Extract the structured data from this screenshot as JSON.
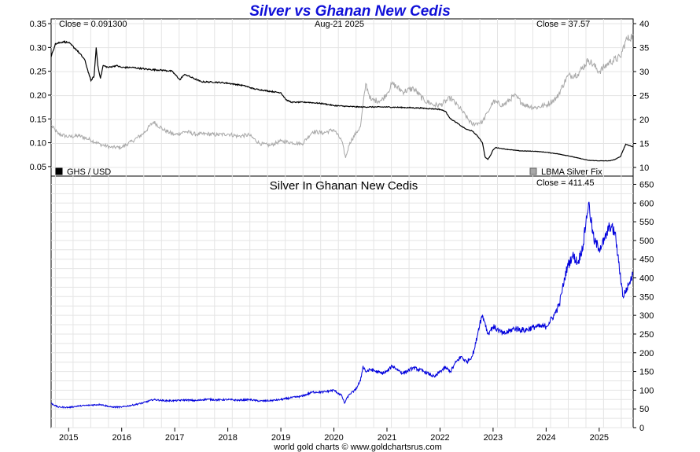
{
  "title": "Silver vs Ghanan New Cedis",
  "footer": "world gold charts © www.goldchartsrus.com",
  "colors": {
    "ghs_usd": "#000000",
    "lbma": "#a8a8a8",
    "silver_ghs": "#0000dd",
    "grid": "#e4e4e4",
    "title": "#1010d8"
  },
  "chart_data": [
    {
      "type": "line",
      "panel": "top",
      "date_label": "Aug-21  2025",
      "close_left": "Close = 0.091300",
      "close_right": "Close = 37.57",
      "legend": [
        {
          "label": "GHS / USD",
          "color": "#000000",
          "position": "bottom-left"
        },
        {
          "label": "LBMA Silver Fix",
          "color": "#a8a8a8",
          "position": "bottom-right"
        }
      ],
      "y_left": {
        "ylim": [
          0.03,
          0.36
        ],
        "ticks": [
          0.05,
          0.1,
          0.15,
          0.2,
          0.25,
          0.3,
          0.35
        ],
        "tick_labels": [
          "0.05",
          "0.10",
          "0.15",
          "0.20",
          "0.25",
          "0.30",
          "0.35"
        ]
      },
      "y_right": {
        "ylim": [
          8.2,
          41
        ],
        "ticks": [
          10,
          15,
          20,
          25,
          30,
          35,
          40
        ],
        "tick_labels": [
          "10",
          "15",
          "20",
          "25",
          "30",
          "35",
          "40"
        ]
      },
      "xlim": [
        2014.67,
        2025.64
      ],
      "grid": true,
      "series": [
        {
          "name": "GHS / USD",
          "axis": "left",
          "color": "#000000",
          "x": [
            2014.67,
            2014.75,
            2014.9,
            2015.0,
            2015.15,
            2015.3,
            2015.42,
            2015.48,
            2015.52,
            2015.55,
            2015.6,
            2015.65,
            2015.75,
            2015.9,
            2016.0,
            2016.2,
            2016.5,
            2016.8,
            2016.95,
            2017.1,
            2017.15,
            2017.2,
            2017.5,
            2017.8,
            2018.0,
            2018.3,
            2018.5,
            2018.8,
            2019.0,
            2019.1,
            2019.2,
            2019.5,
            2019.8,
            2020.0,
            2020.3,
            2020.5,
            2020.8,
            2021.0,
            2021.3,
            2021.6,
            2021.9,
            2022.0,
            2022.1,
            2022.15,
            2022.2,
            2022.3,
            2022.4,
            2022.5,
            2022.6,
            2022.7,
            2022.8,
            2022.85,
            2022.9,
            2022.95,
            2023.0,
            2023.05,
            2023.2,
            2023.5,
            2023.8,
            2024.0,
            2024.2,
            2024.4,
            2024.6,
            2024.8,
            2025.0,
            2025.2,
            2025.3,
            2025.4,
            2025.5,
            2025.64
          ],
          "y": [
            0.28,
            0.308,
            0.312,
            0.31,
            0.295,
            0.275,
            0.23,
            0.24,
            0.3,
            0.262,
            0.235,
            0.262,
            0.258,
            0.262,
            0.258,
            0.258,
            0.254,
            0.252,
            0.25,
            0.232,
            0.24,
            0.243,
            0.228,
            0.227,
            0.225,
            0.22,
            0.213,
            0.208,
            0.205,
            0.19,
            0.185,
            0.185,
            0.182,
            0.178,
            0.176,
            0.175,
            0.175,
            0.175,
            0.174,
            0.173,
            0.171,
            0.17,
            0.166,
            0.158,
            0.15,
            0.143,
            0.135,
            0.128,
            0.125,
            0.115,
            0.1,
            0.07,
            0.065,
            0.073,
            0.085,
            0.09,
            0.087,
            0.083,
            0.082,
            0.08,
            0.077,
            0.073,
            0.068,
            0.063,
            0.062,
            0.062,
            0.065,
            0.071,
            0.097,
            0.0913
          ]
        },
        {
          "name": "LBMA Silver Fix",
          "axis": "right",
          "color": "#a8a8a8",
          "x": [
            2014.67,
            2014.8,
            2015.0,
            2015.2,
            2015.4,
            2015.6,
            2015.8,
            2016.0,
            2016.2,
            2016.4,
            2016.6,
            2016.8,
            2017.0,
            2017.2,
            2017.4,
            2017.6,
            2017.8,
            2018.0,
            2018.2,
            2018.4,
            2018.6,
            2018.8,
            2019.0,
            2019.2,
            2019.4,
            2019.6,
            2019.8,
            2020.0,
            2020.15,
            2020.22,
            2020.3,
            2020.5,
            2020.6,
            2020.7,
            2020.9,
            2021.0,
            2021.1,
            2021.3,
            2021.5,
            2021.7,
            2021.9,
            2022.0,
            2022.2,
            2022.4,
            2022.6,
            2022.8,
            2022.9,
            2023.0,
            2023.2,
            2023.4,
            2023.6,
            2023.8,
            2024.0,
            2024.2,
            2024.4,
            2024.6,
            2024.8,
            2025.0,
            2025.2,
            2025.4,
            2025.5,
            2025.64
          ],
          "y": [
            18.8,
            17.0,
            16.4,
            16.6,
            15.8,
            14.8,
            14.2,
            14.2,
            15.5,
            17.0,
            19.5,
            17.8,
            16.8,
            17.5,
            16.9,
            17.0,
            16.8,
            17.0,
            16.5,
            16.8,
            15.0,
            14.6,
            15.5,
            15.2,
            14.9,
            17.5,
            17.2,
            17.9,
            15.5,
            12.0,
            15.2,
            18.5,
            27.5,
            24.0,
            24.0,
            25.5,
            27.5,
            25.8,
            26.5,
            24.0,
            23.0,
            23.0,
            24.5,
            22.0,
            19.0,
            19.5,
            21.5,
            23.7,
            23.0,
            25.0,
            23.0,
            22.5,
            23.0,
            24.5,
            29.0,
            29.5,
            32.5,
            30.0,
            32.0,
            33.0,
            36.5,
            37.57
          ]
        }
      ]
    },
    {
      "type": "line",
      "panel": "bottom",
      "title": "Silver In Ghanan New Cedis",
      "close_label": "Close = 411.45",
      "y_right": {
        "ylim": [
          0,
          672
        ],
        "ticks": [
          0,
          50,
          100,
          150,
          200,
          250,
          300,
          350,
          400,
          450,
          500,
          550,
          600,
          650
        ],
        "tick_labels": [
          "0",
          "50",
          "100",
          "150",
          "200",
          "250",
          "300",
          "350",
          "400",
          "450",
          "500",
          "550",
          "600",
          "650"
        ]
      },
      "xlim": [
        2014.67,
        2025.64
      ],
      "x_ticks": [
        2015,
        2016,
        2017,
        2018,
        2019,
        2020,
        2021,
        2022,
        2023,
        2024,
        2025
      ],
      "x_tick_labels": [
        "2015",
        "2016",
        "2017",
        "2018",
        "2019",
        "2020",
        "2021",
        "2022",
        "2023",
        "2024",
        "2025"
      ],
      "grid": true,
      "series": [
        {
          "name": "",
          "color": "#0000dd",
          "x": [
            2014.67,
            2014.8,
            2015.0,
            2015.2,
            2015.4,
            2015.6,
            2015.8,
            2016.0,
            2016.2,
            2016.4,
            2016.6,
            2016.8,
            2017.0,
            2017.2,
            2017.4,
            2017.6,
            2017.8,
            2018.0,
            2018.2,
            2018.4,
            2018.6,
            2018.8,
            2019.0,
            2019.2,
            2019.4,
            2019.6,
            2019.8,
            2020.0,
            2020.15,
            2020.2,
            2020.25,
            2020.3,
            2020.4,
            2020.5,
            2020.55,
            2020.6,
            2020.7,
            2020.9,
            2021.0,
            2021.1,
            2021.3,
            2021.5,
            2021.7,
            2021.9,
            2022.0,
            2022.1,
            2022.2,
            2022.3,
            2022.4,
            2022.5,
            2022.6,
            2022.65,
            2022.75,
            2022.8,
            2022.85,
            2022.9,
            2022.95,
            2023.0,
            2023.1,
            2023.2,
            2023.4,
            2023.6,
            2023.8,
            2024.0,
            2024.15,
            2024.25,
            2024.35,
            2024.4,
            2024.5,
            2024.6,
            2024.7,
            2024.75,
            2024.8,
            2024.9,
            2025.0,
            2025.1,
            2025.2,
            2025.3,
            2025.35,
            2025.45,
            2025.55,
            2025.64
          ],
          "y": [
            65,
            55,
            54,
            58,
            60,
            62,
            55,
            55,
            60,
            66,
            75,
            72,
            72,
            74,
            72,
            76,
            74,
            75,
            73,
            75,
            71,
            72,
            75,
            80,
            84,
            95,
            95,
            100,
            85,
            65,
            80,
            90,
            100,
            125,
            165,
            150,
            155,
            145,
            150,
            165,
            145,
            160,
            150,
            135,
            150,
            160,
            150,
            175,
            190,
            175,
            190,
            210,
            280,
            300,
            280,
            250,
            260,
            270,
            260,
            250,
            265,
            260,
            270,
            270,
            300,
            330,
            400,
            430,
            460,
            440,
            490,
            550,
            600,
            500,
            480,
            500,
            540,
            520,
            460,
            350,
            380,
            411.45
          ]
        }
      ]
    }
  ]
}
